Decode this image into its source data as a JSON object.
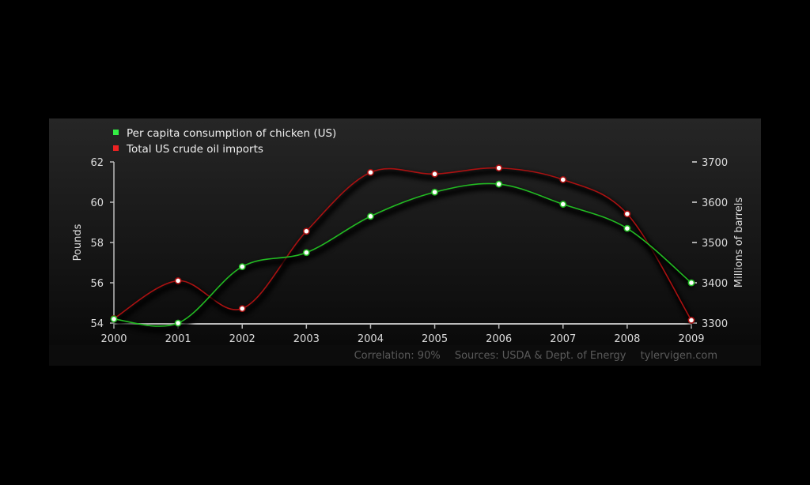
{
  "chart_data": {
    "type": "line",
    "x": [
      2000,
      2001,
      2002,
      2003,
      2004,
      2005,
      2006,
      2007,
      2008,
      2009
    ],
    "x_tick_labels": [
      "2000",
      "2001",
      "2002",
      "2003",
      "2004",
      "2005",
      "2006",
      "2007",
      "2008",
      "2009"
    ],
    "series": [
      {
        "name": "Per capita consumption of chicken (US)",
        "axis": "left",
        "color": "#22bb22",
        "legend_color": "#33ee44",
        "values": [
          54.2,
          54.0,
          56.8,
          57.5,
          59.3,
          60.5,
          60.9,
          59.9,
          58.7,
          56.0
        ]
      },
      {
        "name": "Total US crude oil imports",
        "axis": "right",
        "color": "#aa1111",
        "legend_color": "#ee2222",
        "values": [
          3311,
          3405,
          3336,
          3528,
          3674,
          3670,
          3685,
          3656,
          3571,
          3307
        ]
      }
    ],
    "left_axis": {
      "label": "Pounds",
      "ylim": [
        54,
        62
      ],
      "ticks": [
        "54",
        "56",
        "58",
        "60",
        "62"
      ]
    },
    "right_axis": {
      "label": "Millions of barrels",
      "ylim": [
        3300,
        3700
      ],
      "ticks": [
        "3300",
        "3400",
        "3500",
        "3600",
        "3700"
      ]
    },
    "legend_placement": "top-left",
    "grid": false
  },
  "footer": {
    "correlation": "Correlation: 90%",
    "sources": "Sources: USDA & Dept. of Energy",
    "site": "tylervigen.com"
  }
}
